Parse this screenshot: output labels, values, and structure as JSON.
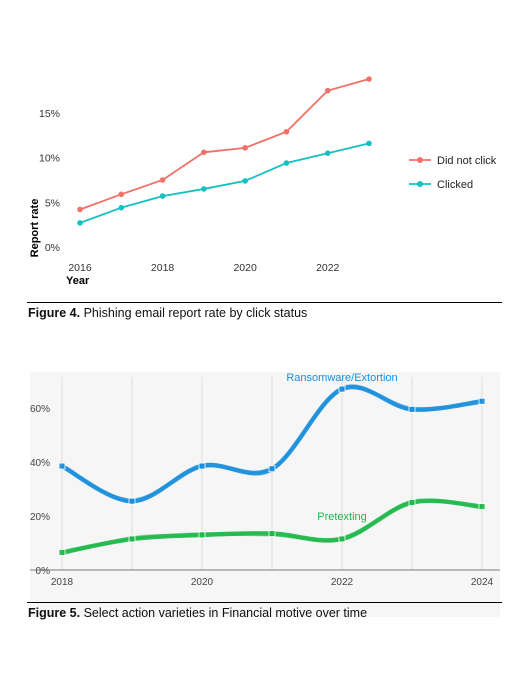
{
  "chart_data": [
    {
      "type": "line",
      "title": "",
      "xlabel": "Year",
      "ylabel": "Report rate",
      "x": [
        2016,
        2017,
        2018,
        2019,
        2020,
        2021,
        2022,
        2023
      ],
      "x_ticks": [
        "2016",
        "2018",
        "2020",
        "2022"
      ],
      "y_ticks": [
        "0%",
        "5%",
        "10%",
        "15%"
      ],
      "ylim": [
        0,
        20
      ],
      "grid": false,
      "legend_position": "right",
      "series": [
        {
          "name": "Did not click",
          "color": "#f07167",
          "values": [
            4.2,
            5.9,
            7.5,
            10.6,
            11.1,
            12.9,
            17.5,
            18.8
          ]
        },
        {
          "name": "Clicked",
          "color": "#14c0c0",
          "values": [
            2.7,
            4.4,
            5.7,
            6.5,
            7.4,
            9.4,
            10.5,
            11.6
          ]
        }
      ]
    },
    {
      "type": "line",
      "title": "",
      "xlabel": "",
      "ylabel": "",
      "x": [
        2018,
        2019,
        2020,
        2021,
        2022,
        2023,
        2024
      ],
      "x_ticks": [
        "2018",
        "2020",
        "2022",
        "2024"
      ],
      "y_ticks": [
        "0%",
        "20%",
        "40%",
        "60%"
      ],
      "ylim": [
        0,
        70
      ],
      "grid": true,
      "series": [
        {
          "name": "Ransomware/Extortion",
          "color": "#1a8fdc",
          "values": [
            38.5,
            25.5,
            38.5,
            37.5,
            67,
            59.5,
            62.5
          ]
        },
        {
          "name": "Pretexting",
          "color": "#1fb84a",
          "values": [
            6.5,
            11.5,
            13,
            13.5,
            11.5,
            25,
            23.5
          ]
        }
      ]
    }
  ],
  "captions": {
    "fig4_label": "Figure 4.",
    "fig4_text": " Phishing email report rate by click status",
    "fig5_label": "Figure 5.",
    "fig5_text": " Select action varieties in Financial motive over time"
  }
}
